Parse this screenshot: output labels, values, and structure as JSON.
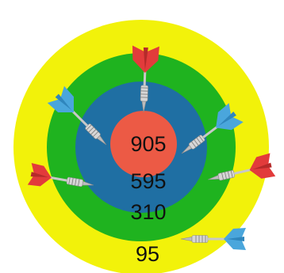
{
  "target": {
    "rings": [
      {
        "id": "outer",
        "score": "95",
        "color": "#f2f20a"
      },
      {
        "id": "second",
        "score": "310",
        "color": "#1fb31f"
      },
      {
        "id": "third",
        "score": "595",
        "color": "#1f6fa3"
      },
      {
        "id": "bullseye",
        "score": "905",
        "color": "#ec5a45"
      }
    ]
  },
  "darts": [
    {
      "id": "top",
      "color": "#e23b3b"
    },
    {
      "id": "upper-left",
      "color": "#4aa6dc"
    },
    {
      "id": "upper-right",
      "color": "#4aa6dc"
    },
    {
      "id": "left",
      "color": "#e23b3b"
    },
    {
      "id": "right",
      "color": "#e23b3b"
    },
    {
      "id": "bottom-right",
      "color": "#4aa6dc"
    }
  ]
}
